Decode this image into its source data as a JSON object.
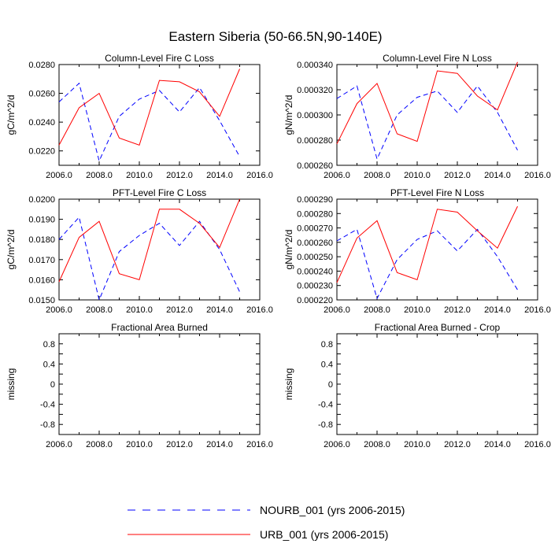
{
  "figure_title": "Eastern Siberia (50-66.5N,90-140E)",
  "legend": {
    "items": [
      {
        "label": "NOURB_001 (yrs 2006-2015)",
        "color": "#0000ff",
        "style": "dashed"
      },
      {
        "label": "URB_001 (yrs 2006-2015)",
        "color": "#ff0000",
        "style": "solid"
      }
    ]
  },
  "chart_data": [
    {
      "type": "line",
      "title": "Column-Level Fire C Loss",
      "ylabel": "gC/m^2/d",
      "xlim": [
        2006,
        2016
      ],
      "ylim": [
        0.021,
        0.028
      ],
      "xticks": [
        "2006.0",
        "2008.0",
        "2010.0",
        "2012.0",
        "2014.0",
        "2016.0"
      ],
      "yticks": [
        0.022,
        0.024,
        0.026,
        0.028
      ],
      "ytick_labels": [
        "0.0220",
        "0.0240",
        "0.0260",
        "0.0280"
      ],
      "x": [
        2006,
        2007,
        2008,
        2009,
        2010,
        2011,
        2012,
        2013,
        2014,
        2015
      ],
      "series": [
        {
          "name": "NOURB_001 (yrs 2006-2015)",
          "color": "#0000ff",
          "style": "dashed",
          "values": [
            0.0254,
            0.0267,
            0.0213,
            0.0244,
            0.0256,
            0.0262,
            0.0247,
            0.0264,
            0.0241,
            0.0216
          ]
        },
        {
          "name": "URB_001 (yrs 2006-2015)",
          "color": "#ff0000",
          "style": "solid",
          "values": [
            0.0224,
            0.025,
            0.026,
            0.0229,
            0.0224,
            0.0269,
            0.0268,
            0.0261,
            0.0244,
            0.0277
          ]
        }
      ]
    },
    {
      "type": "line",
      "title": "Column-Level Fire N Loss",
      "ylabel": "gN/m^2/d",
      "xlim": [
        2006,
        2016
      ],
      "ylim": [
        0.00026,
        0.00034
      ],
      "xticks": [
        "2006.0",
        "2008.0",
        "2010.0",
        "2012.0",
        "2014.0",
        "2016.0"
      ],
      "yticks": [
        0.00026,
        0.00028,
        0.0003,
        0.00032,
        0.00034
      ],
      "ytick_labels": [
        "0.000260",
        "0.000280",
        "0.000300",
        "0.000320",
        "0.000340"
      ],
      "x": [
        2006,
        2007,
        2008,
        2009,
        2010,
        2011,
        2012,
        2013,
        2014,
        2015
      ],
      "series": [
        {
          "name": "NOURB_001 (yrs 2006-2015)",
          "color": "#0000ff",
          "style": "dashed",
          "values": [
            0.000313,
            0.000323,
            0.000265,
            0.0003,
            0.000314,
            0.000319,
            0.000302,
            0.000323,
            0.000302,
            0.000272
          ]
        },
        {
          "name": "URB_001 (yrs 2006-2015)",
          "color": "#ff0000",
          "style": "solid",
          "values": [
            0.000277,
            0.000309,
            0.000325,
            0.000285,
            0.000279,
            0.000335,
            0.000333,
            0.000315,
            0.000304,
            0.000342
          ]
        }
      ]
    },
    {
      "type": "line",
      "title": "PFT-Level Fire C Loss",
      "ylabel": "gC/m^2/d",
      "xlim": [
        2006,
        2016
      ],
      "ylim": [
        0.015,
        0.02
      ],
      "xticks": [
        "2006.0",
        "2008.0",
        "2010.0",
        "2012.0",
        "2014.0",
        "2016.0"
      ],
      "yticks": [
        0.015,
        0.016,
        0.017,
        0.018,
        0.019,
        0.02
      ],
      "ytick_labels": [
        "0.0150",
        "0.0160",
        "0.0170",
        "0.0180",
        "0.0190",
        "0.0200"
      ],
      "x": [
        2006,
        2007,
        2008,
        2009,
        2010,
        2011,
        2012,
        2013,
        2014,
        2015
      ],
      "series": [
        {
          "name": "NOURB_001 (yrs 2006-2015)",
          "color": "#0000ff",
          "style": "dashed",
          "values": [
            0.018,
            0.0191,
            0.015,
            0.0174,
            0.0182,
            0.0188,
            0.0177,
            0.0189,
            0.0175,
            0.0154
          ]
        },
        {
          "name": "URB_001 (yrs 2006-2015)",
          "color": "#ff0000",
          "style": "solid",
          "values": [
            0.0159,
            0.0181,
            0.0189,
            0.0163,
            0.016,
            0.0195,
            0.0195,
            0.0188,
            0.0176,
            0.02
          ]
        }
      ]
    },
    {
      "type": "line",
      "title": "PFT-Level Fire N Loss",
      "ylabel": "gN/m^2/d",
      "xlim": [
        2006,
        2016
      ],
      "ylim": [
        0.00022,
        0.00029
      ],
      "xticks": [
        "2006.0",
        "2008.0",
        "2010.0",
        "2012.0",
        "2014.0",
        "2016.0"
      ],
      "yticks": [
        0.00022,
        0.00023,
        0.00024,
        0.00025,
        0.00026,
        0.00027,
        0.00028,
        0.00029
      ],
      "ytick_labels": [
        "0.000220",
        "0.000230",
        "0.000240",
        "0.000250",
        "0.000260",
        "0.000270",
        "0.000280",
        "0.000290"
      ],
      "x": [
        2006,
        2007,
        2008,
        2009,
        2010,
        2011,
        2012,
        2013,
        2014,
        2015
      ],
      "series": [
        {
          "name": "NOURB_001 (yrs 2006-2015)",
          "color": "#0000ff",
          "style": "dashed",
          "values": [
            0.000261,
            0.000269,
            0.000221,
            0.000248,
            0.000262,
            0.000268,
            0.000254,
            0.000269,
            0.00025,
            0.000227
          ]
        },
        {
          "name": "URB_001 (yrs 2006-2015)",
          "color": "#ff0000",
          "style": "solid",
          "values": [
            0.000232,
            0.000263,
            0.000275,
            0.000239,
            0.000234,
            0.000283,
            0.000281,
            0.000268,
            0.000256,
            0.000285
          ]
        }
      ]
    },
    {
      "type": "line",
      "title": "Fractional Area Burned",
      "ylabel": "missing",
      "xlim": [
        2006,
        2016
      ],
      "ylim": [
        -1,
        1
      ],
      "xticks": [
        "2006.0",
        "2008.0",
        "2010.0",
        "2012.0",
        "2014.0",
        "2016.0"
      ],
      "yticks": [
        -0.8,
        -0.6,
        -0.4,
        -0.2,
        0,
        0.2,
        0.4,
        0.6,
        0.8
      ],
      "ytick_labels": [
        "-0.8",
        "",
        "-0.4",
        "",
        "0",
        "",
        "0.4",
        "",
        "0.8"
      ],
      "x": [],
      "series": []
    },
    {
      "type": "line",
      "title": "Fractional Area Burned - Crop",
      "ylabel": "missing",
      "xlim": [
        2006,
        2016
      ],
      "ylim": [
        -1,
        1
      ],
      "xticks": [
        "2006.0",
        "2008.0",
        "2010.0",
        "2012.0",
        "2014.0",
        "2016.0"
      ],
      "yticks": [
        -0.8,
        -0.6,
        -0.4,
        -0.2,
        0,
        0.2,
        0.4,
        0.6,
        0.8
      ],
      "ytick_labels": [
        "-0.8",
        "",
        "-0.4",
        "",
        "0",
        "",
        "0.4",
        "",
        "0.8"
      ],
      "x": [],
      "series": []
    }
  ]
}
